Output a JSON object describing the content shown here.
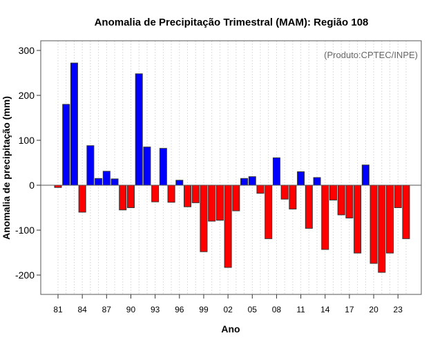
{
  "chart_data": {
    "type": "bar",
    "title": "Anomalia de Precipitação Trimestral (MAM): Região 108",
    "xlabel": "Ano",
    "ylabel": "Anomalia de precipitação (mm)",
    "annotation": "(Produto:CPTEC/INPE)",
    "ylim": [
      -245,
      320
    ],
    "yticks": [
      -200,
      -100,
      0,
      100,
      200,
      300
    ],
    "xtick_labels": [
      "81",
      "84",
      "87",
      "90",
      "93",
      "96",
      "99",
      "02",
      "05",
      "08",
      "11",
      "14",
      "17",
      "20",
      "23"
    ],
    "grid": "vertical dotted",
    "colors": {
      "positive": "#0000ff",
      "negative": "#ff0000"
    },
    "years": [
      1981,
      1982,
      1983,
      1984,
      1985,
      1986,
      1987,
      1988,
      1989,
      1990,
      1991,
      1992,
      1993,
      1994,
      1995,
      1996,
      1997,
      1998,
      1999,
      2000,
      2001,
      2002,
      2003,
      2004,
      2005,
      2006,
      2007,
      2008,
      2009,
      2010,
      2011,
      2012,
      2013,
      2014,
      2015,
      2016,
      2017,
      2018,
      2019,
      2020,
      2021,
      2022,
      2023,
      2024
    ],
    "values": [
      -5,
      180,
      272,
      -60,
      88,
      15,
      31,
      14,
      -55,
      -50,
      248,
      85,
      -37,
      82,
      -38,
      11,
      -48,
      -39,
      -148,
      -80,
      -78,
      -183,
      -57,
      15,
      19,
      -18,
      -119,
      61,
      -31,
      -53,
      30,
      -96,
      17,
      -143,
      -33,
      -66,
      -73,
      -151,
      45,
      -174,
      -194,
      -151,
      -50,
      -119
    ]
  }
}
